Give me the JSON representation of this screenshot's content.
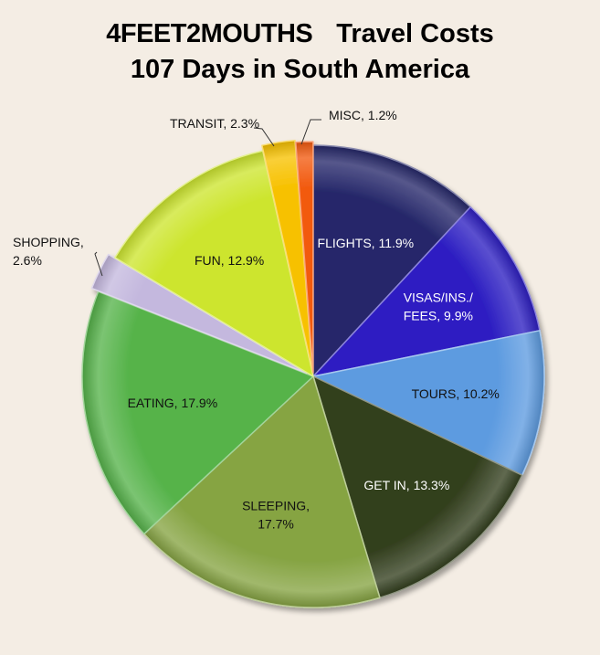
{
  "chart_data": {
    "type": "pie",
    "title_brand": "4FEET2MOUTHS",
    "title_main": "Travel Costs",
    "subtitle": "107 Days in South America",
    "slices": [
      {
        "label": "FLIGHTS, 11.9%",
        "label_lines": [
          "FLIGHTS, 11.9%"
        ],
        "value": 11.9,
        "color": "#26286a",
        "text_color": "#ffffff",
        "inside": true
      },
      {
        "label": "VISAS/INS./ FEES, 9.9%",
        "label_lines": [
          "VISAS/INS./",
          "FEES, 9.9%"
        ],
        "value": 9.9,
        "color": "#2d1fc2",
        "text_color": "#ffffff",
        "inside": true
      },
      {
        "label": "TOURS, 10.2%",
        "label_lines": [
          "TOURS, 10.2%"
        ],
        "value": 10.2,
        "color": "#5d9be0",
        "text_color": "#111111",
        "inside": true
      },
      {
        "label": "GET IN, 13.3%",
        "label_lines": [
          "GET IN, 13.3%"
        ],
        "value": 13.3,
        "color": "#333f1e",
        "text_color": "#ffffff",
        "inside": true
      },
      {
        "label": "SLEEPING, 17.7%",
        "label_lines": [
          "SLEEPING,",
          "17.7%"
        ],
        "value": 17.7,
        "color": "#86a443",
        "text_color": "#111111",
        "inside": true
      },
      {
        "label": "EATING, 17.9%",
        "label_lines": [
          "EATING, 17.9%"
        ],
        "value": 17.9,
        "color": "#56b34a",
        "text_color": "#111111",
        "inside": true
      },
      {
        "label": "SHOPPING, 2.6%",
        "label_lines": [
          "SHOPPING,",
          "2.6%"
        ],
        "value": 2.6,
        "color": "#c4b8de",
        "text_color": "#111111",
        "inside": false
      },
      {
        "label": "FUN, 12.9%",
        "label_lines": [
          "FUN, 12.9%"
        ],
        "value": 12.9,
        "color": "#cde52f",
        "text_color": "#111111",
        "inside": true
      },
      {
        "label": "TRANSIT, 2.3%",
        "label_lines": [
          "TRANSIT, 2.3%"
        ],
        "value": 2.3,
        "color": "#f7c100",
        "text_color": "#111111",
        "inside": false
      },
      {
        "label": "MISC, 1.2%",
        "label_lines": [
          "MISC, 1.2%"
        ],
        "value": 1.2,
        "color": "#f25a0f",
        "text_color": "#111111",
        "inside": false
      }
    ],
    "start_angle": "12 o'clock",
    "direction": "clockwise",
    "legend": "none"
  }
}
